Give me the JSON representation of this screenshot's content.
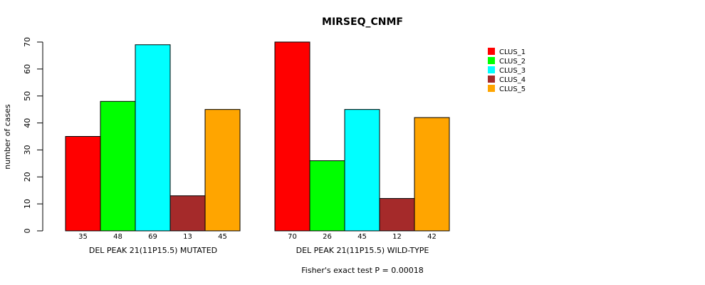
{
  "chart_data": {
    "type": "bar",
    "title": "MIRSEQ_CNMF",
    "ylabel": "number of cases",
    "ylim": [
      0,
      70
    ],
    "yticks": [
      0,
      10,
      20,
      30,
      40,
      50,
      60,
      70
    ],
    "clusters": [
      "CLUS_1",
      "CLUS_2",
      "CLUS_3",
      "CLUS_4",
      "CLUS_5"
    ],
    "colors": [
      "#ff0000",
      "#00ff00",
      "#00ffff",
      "#a52a2a",
      "#ffa500"
    ],
    "groups": [
      {
        "name": "DEL PEAK 21(11P15.5) MUTATED",
        "values": [
          35,
          48,
          69,
          13,
          45
        ]
      },
      {
        "name": "DEL PEAK 21(11P15.5) WILD-TYPE",
        "values": [
          70,
          26,
          45,
          12,
          42
        ]
      }
    ],
    "footnote": "Fisher's exact test P = 0.00018",
    "legend_position": "top-right"
  }
}
